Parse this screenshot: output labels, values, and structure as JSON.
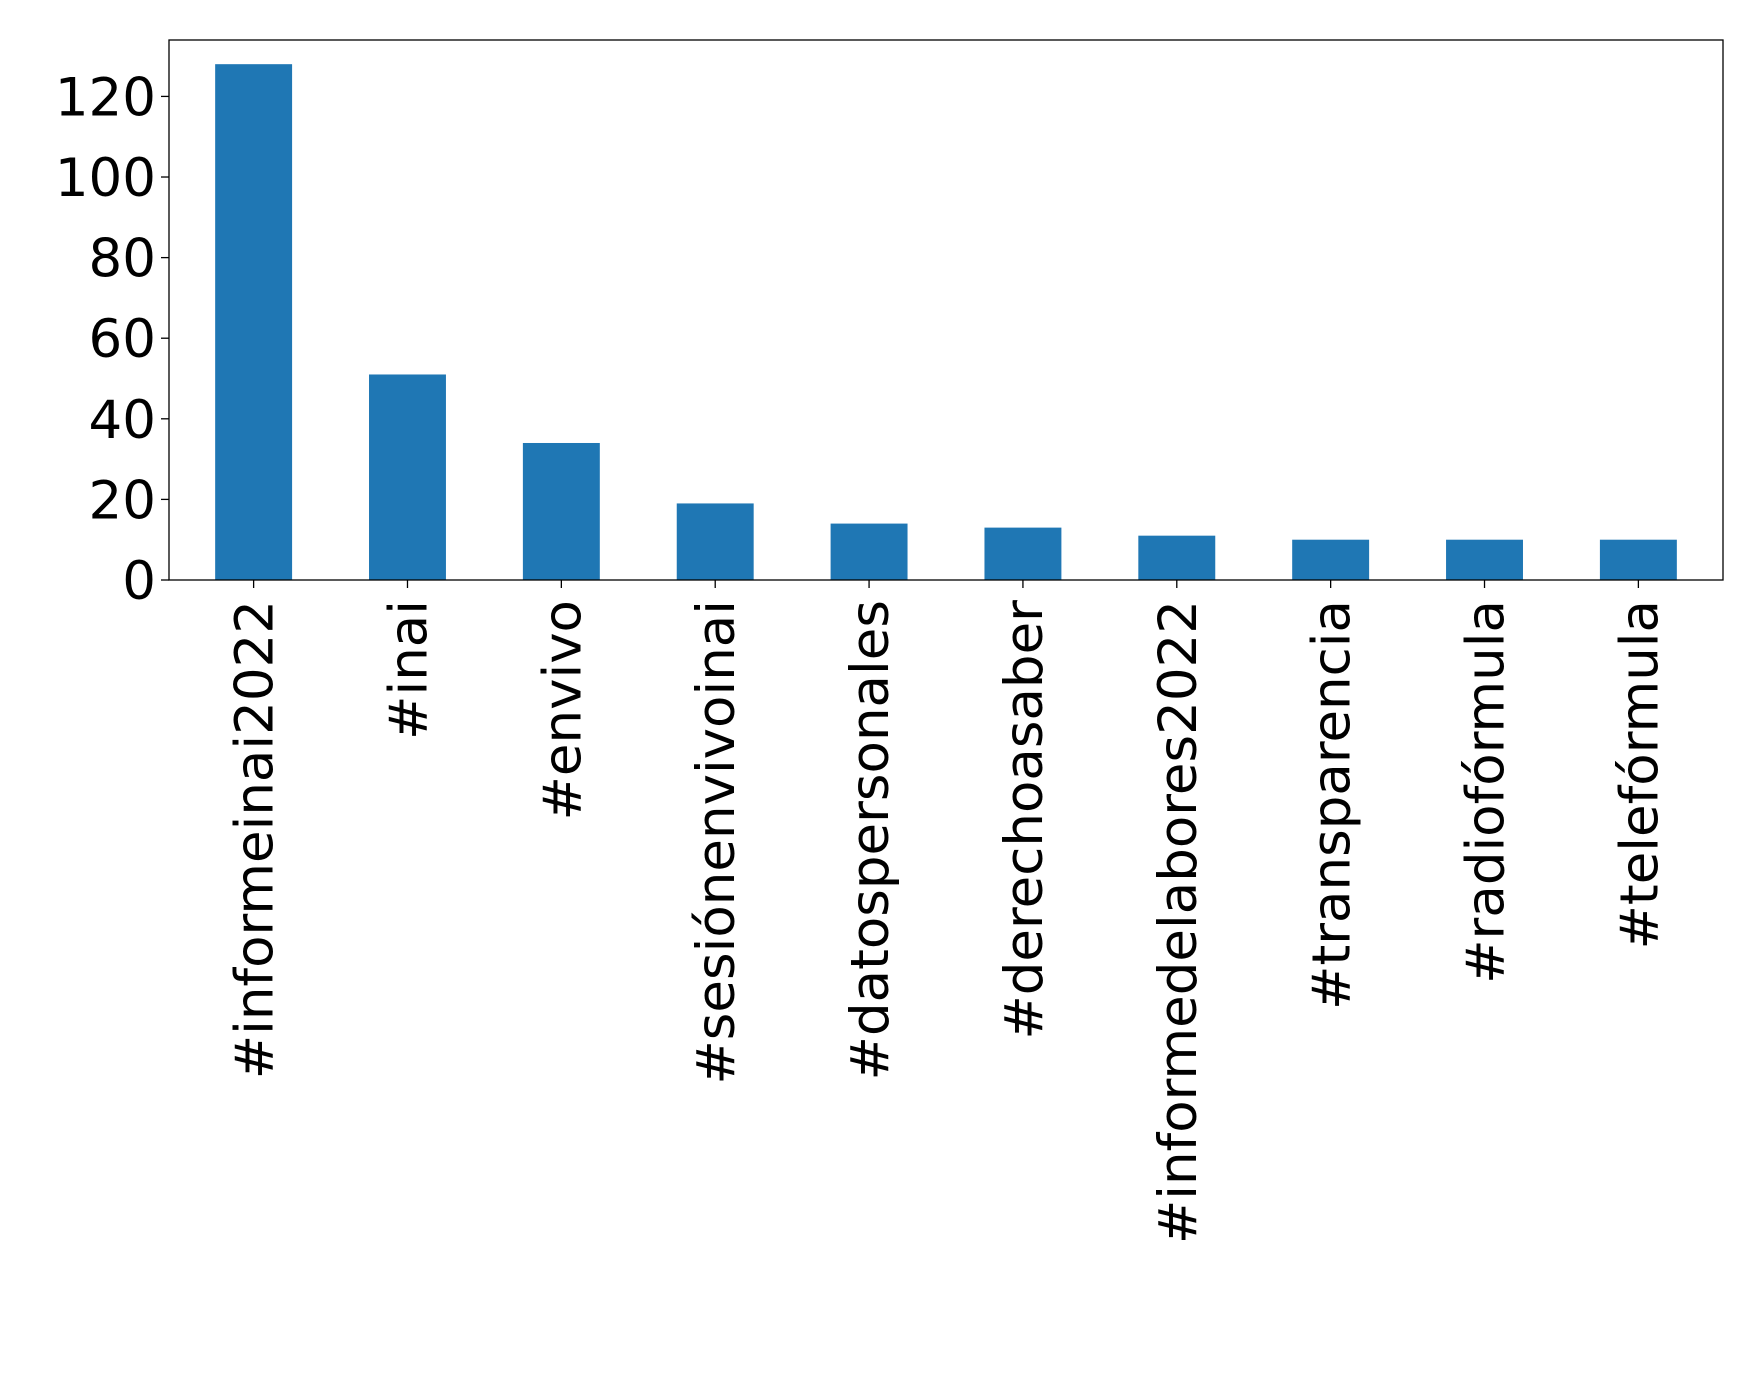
{
  "chart_data": {
    "type": "bar",
    "categories": [
      "#informeinai2022",
      "#inai",
      "#envivo",
      "#sesiónenvivoinai",
      "#datospersonales",
      "#derechoasaber",
      "#informedelabores2022",
      "#transparencia",
      "#radiofórmula",
      "#telefórmula"
    ],
    "values": [
      128,
      51,
      34,
      19,
      14,
      13,
      11,
      10,
      10,
      10
    ],
    "title": "",
    "xlabel": "",
    "ylabel": "",
    "ylim": [
      0,
      134
    ],
    "yticks": [
      0,
      20,
      40,
      60,
      80,
      100,
      120
    ],
    "grid": false,
    "legend": "none",
    "bar_color": "#1f77b4"
  }
}
